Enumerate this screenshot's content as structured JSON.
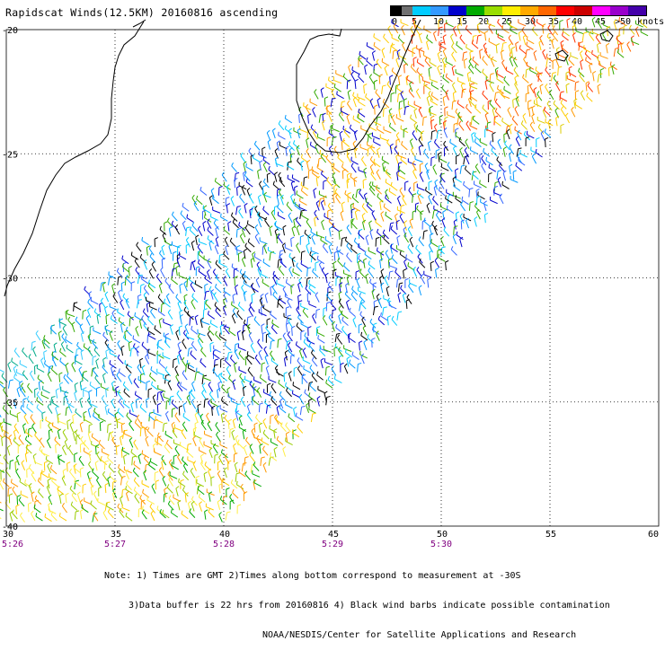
{
  "title": "Rapidscat Winds(12.5KM) 20160816 ascending",
  "legend": {
    "labels": [
      "0",
      "5",
      "10",
      "15",
      "20",
      "25",
      "30",
      "35",
      "40",
      "45",
      ">50"
    ],
    "units": "knots",
    "colors": [
      "#000000",
      "#707070",
      "#00ccff",
      "#3399ff",
      "#0000cc",
      "#00aa00",
      "#99dd00",
      "#ffee00",
      "#ffaa00",
      "#ff6600",
      "#ff0000",
      "#cc0000",
      "#ff00ff",
      "#9900cc",
      "#4400aa"
    ]
  },
  "map": {
    "lat_labels": [
      "-20",
      "-25",
      "-30",
      "-35",
      "-40"
    ],
    "lon_labels": [
      "30",
      "35",
      "40",
      "45",
      "50",
      "55",
      "60"
    ],
    "time_labels": [
      "5:26",
      "5:27",
      "5:28",
      "5:29",
      "5:30"
    ],
    "lat_range": [
      -40,
      -20
    ],
    "lon_range": [
      30,
      60
    ]
  },
  "footer": {
    "line1": "Note: 1) Times are GMT 2)Times along bottom correspond to measurement at -30S",
    "line2": "3)Data buffer is 22 hrs from 20160816 4) Black wind barbs indicate possible contamination",
    "line3": "NOAA/NESDIS/Center for Satellite Applications and Research"
  }
}
